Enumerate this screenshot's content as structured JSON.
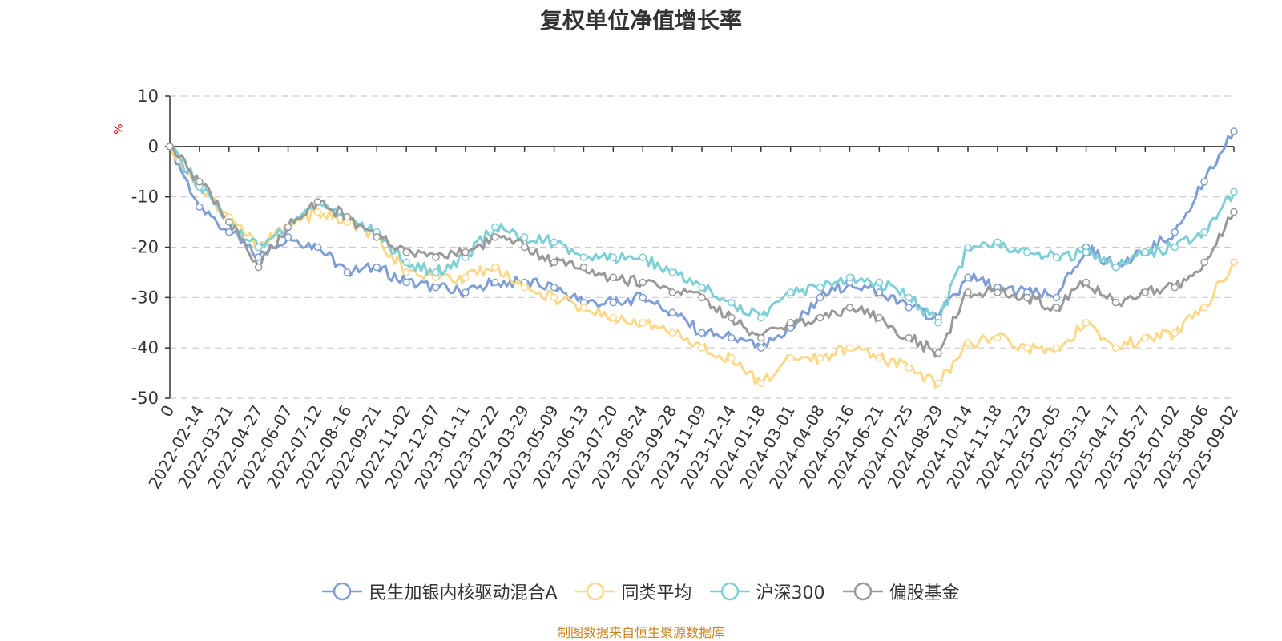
{
  "chart_data": {
    "type": "line",
    "title": "复权单位净值增长率",
    "ylabel": "%",
    "ylim": [
      -50,
      10
    ],
    "yticks": [
      10,
      0,
      -10,
      -20,
      -30,
      -40,
      -50
    ],
    "grid": true,
    "legend_position": "bottom",
    "x": [
      "0",
      "2022-02-14",
      "2022-03-21",
      "2022-04-27",
      "2022-06-07",
      "2022-07-12",
      "2022-08-16",
      "2022-09-21",
      "2022-11-02",
      "2022-12-07",
      "2023-01-11",
      "2023-02-22",
      "2023-03-29",
      "2023-05-09",
      "2023-06-13",
      "2023-07-20",
      "2023-08-24",
      "2023-09-28",
      "2023-11-09",
      "2023-12-14",
      "2024-01-18",
      "2024-03-01",
      "2024-04-08",
      "2024-05-16",
      "2024-06-21",
      "2024-07-25",
      "2024-08-29",
      "2024-10-14",
      "2024-11-18",
      "2024-12-23",
      "2025-02-05",
      "2025-03-12",
      "2025-04-17",
      "2025-05-27",
      "2025-07-02",
      "2025-08-06",
      "2025-09-02"
    ],
    "series": [
      {
        "name": "民生加银内核驱动混合A",
        "color": "#7f9fd4",
        "values": [
          0,
          -12,
          -17,
          -22,
          -18,
          -20,
          -25,
          -24,
          -27,
          -28,
          -29,
          -27,
          -27,
          -28,
          -31,
          -31,
          -30,
          -33,
          -37,
          -38,
          -40,
          -36,
          -30,
          -27,
          -29,
          -32,
          -34,
          -26,
          -28,
          -29,
          -30,
          -20,
          -24,
          -21,
          -17,
          -7,
          3
        ]
      },
      {
        "name": "同类平均",
        "color": "#fbd98b",
        "values": [
          0,
          -8,
          -14,
          -20,
          -16,
          -13,
          -15,
          -18,
          -25,
          -26,
          -26,
          -24,
          -28,
          -30,
          -32,
          -34,
          -35,
          -37,
          -40,
          -42,
          -47,
          -42,
          -42,
          -40,
          -42,
          -44,
          -47,
          -39,
          -38,
          -40,
          -40,
          -35,
          -40,
          -38,
          -37,
          -32,
          -23
        ]
      },
      {
        "name": "沪深300",
        "color": "#7fd0d6",
        "values": [
          0,
          -8,
          -15,
          -20,
          -16,
          -11,
          -14,
          -17,
          -23,
          -25,
          -22,
          -16,
          -18,
          -19,
          -22,
          -22,
          -22,
          -25,
          -28,
          -31,
          -34,
          -29,
          -28,
          -26,
          -27,
          -30,
          -35,
          -20,
          -19,
          -21,
          -22,
          -21,
          -24,
          -21,
          -20,
          -17,
          -9
        ]
      },
      {
        "name": "偏股基金",
        "color": "#999999",
        "values": [
          0,
          -7,
          -15,
          -24,
          -16,
          -11,
          -14,
          -18,
          -21,
          -22,
          -21,
          -18,
          -20,
          -23,
          -24,
          -26,
          -27,
          -29,
          -30,
          -34,
          -38,
          -35,
          -34,
          -32,
          -34,
          -38,
          -41,
          -29,
          -29,
          -30,
          -32,
          -27,
          -31,
          -29,
          -28,
          -23,
          -13
        ]
      }
    ]
  },
  "source_text": "制图数据来自恒生聚源数据库"
}
